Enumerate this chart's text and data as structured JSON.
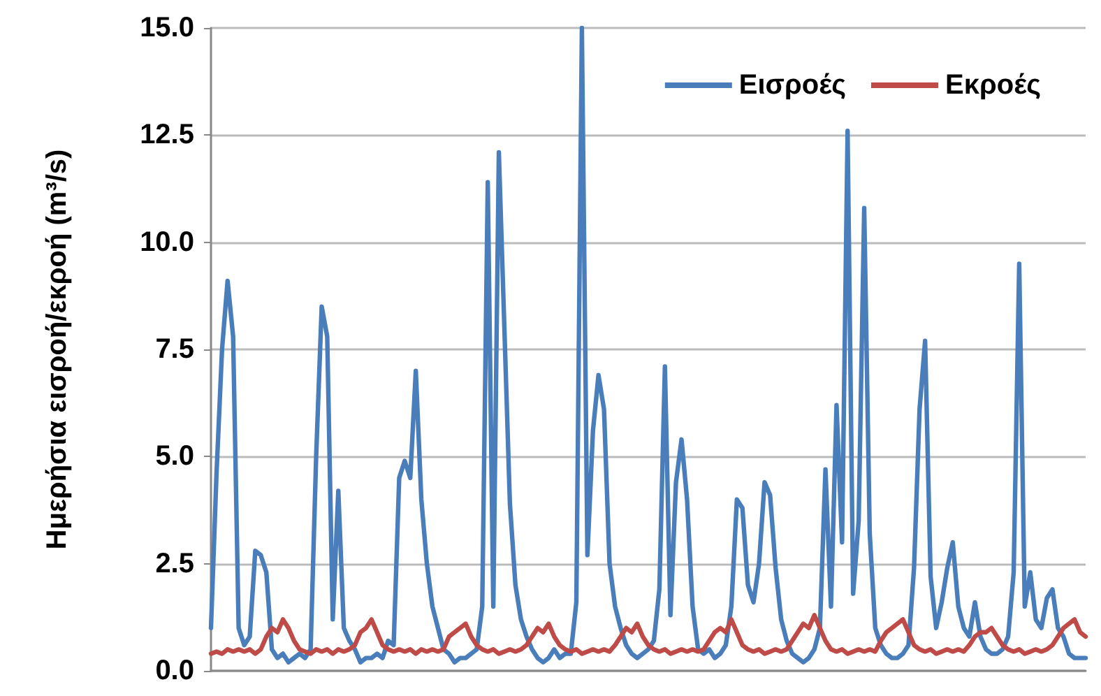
{
  "chart_data": {
    "type": "line",
    "ylabel": "Ημερήσια εισροή/εκροή (m³/s)",
    "categories": [
      null,
      null,
      null,
      null,
      null,
      null,
      null,
      null,
      null,
      null,
      null,
      null,
      null,
      null,
      null,
      null,
      null,
      null,
      null,
      null,
      null,
      null,
      null,
      null,
      null,
      null,
      null,
      null,
      null,
      null,
      null,
      null,
      null,
      null,
      null,
      null,
      null,
      null,
      null,
      null,
      null,
      null,
      null,
      null,
      null,
      null,
      null,
      null,
      null,
      null,
      null,
      null,
      null,
      null,
      null,
      null,
      null,
      null,
      null,
      null,
      null,
      null,
      null,
      null,
      null,
      null,
      null,
      null,
      null,
      null,
      null,
      null,
      null,
      null,
      null,
      null,
      null,
      null,
      null,
      null,
      null,
      null,
      null,
      null,
      null,
      null,
      null,
      null,
      null,
      null,
      null,
      null,
      null,
      null,
      null,
      null,
      null,
      null,
      null,
      null,
      null,
      null,
      null,
      null,
      null,
      null,
      null,
      null,
      null,
      null,
      null,
      null,
      null,
      null,
      null,
      null,
      null,
      null,
      null,
      null,
      null,
      null,
      null,
      null,
      null,
      null,
      null,
      null,
      null,
      null,
      null,
      null,
      null,
      null,
      null,
      null,
      null,
      null,
      null,
      null,
      null,
      null,
      null,
      null,
      null,
      null,
      null,
      null,
      null,
      null,
      null,
      null,
      null,
      null,
      null,
      null,
      null,
      null,
      null
    ],
    "series": [
      {
        "name": "Εισροές",
        "color": "#4a7ebb",
        "values": [
          1.0,
          4.6,
          7.5,
          9.1,
          7.8,
          1.0,
          0.6,
          0.8,
          2.8,
          2.7,
          2.3,
          0.5,
          0.3,
          0.4,
          0.2,
          0.3,
          0.4,
          0.3,
          0.5,
          5.0,
          8.5,
          7.8,
          1.2,
          4.2,
          1.0,
          0.7,
          0.5,
          0.2,
          0.3,
          0.3,
          0.4,
          0.3,
          0.7,
          0.6,
          4.5,
          4.9,
          4.5,
          7.0,
          4.0,
          2.5,
          1.5,
          1.0,
          0.5,
          0.4,
          0.2,
          0.3,
          0.3,
          0.4,
          0.5,
          1.5,
          11.4,
          1.5,
          12.1,
          8.0,
          3.9,
          2.0,
          1.2,
          0.8,
          0.5,
          0.3,
          0.2,
          0.3,
          0.5,
          0.3,
          0.4,
          0.4,
          1.6,
          15.0,
          2.7,
          5.6,
          6.9,
          6.1,
          2.5,
          1.5,
          1.0,
          0.6,
          0.4,
          0.3,
          0.4,
          0.5,
          0.7,
          1.9,
          7.1,
          1.3,
          4.4,
          5.4,
          4.0,
          1.5,
          0.5,
          0.4,
          0.5,
          0.3,
          0.4,
          0.6,
          1.5,
          4.0,
          3.8,
          2.0,
          1.6,
          2.5,
          4.4,
          4.1,
          2.4,
          1.2,
          0.7,
          0.4,
          0.3,
          0.2,
          0.3,
          0.5,
          1.0,
          4.7,
          1.5,
          6.2,
          3.0,
          12.6,
          1.8,
          3.5,
          10.8,
          3.2,
          1.0,
          0.6,
          0.4,
          0.3,
          0.3,
          0.4,
          0.6,
          2.4,
          6.1,
          7.7,
          2.2,
          1.0,
          1.6,
          2.4,
          3.0,
          1.5,
          1.0,
          0.8,
          1.6,
          0.8,
          0.5,
          0.4,
          0.4,
          0.5,
          0.8,
          2.3,
          9.5,
          1.5,
          2.3,
          1.2,
          1.0,
          1.7,
          1.9,
          1.0,
          0.8,
          0.4,
          0.3,
          0.3,
          0.3
        ]
      },
      {
        "name": "Εκροές",
        "color": "#be4b48",
        "values": [
          0.4,
          0.45,
          0.4,
          0.5,
          0.45,
          0.5,
          0.45,
          0.5,
          0.4,
          0.5,
          0.8,
          1.0,
          0.9,
          1.2,
          1.0,
          0.7,
          0.5,
          0.45,
          0.4,
          0.5,
          0.45,
          0.5,
          0.4,
          0.5,
          0.45,
          0.5,
          0.6,
          0.9,
          1.0,
          1.2,
          0.9,
          0.6,
          0.5,
          0.45,
          0.5,
          0.45,
          0.5,
          0.4,
          0.5,
          0.45,
          0.5,
          0.45,
          0.5,
          0.8,
          0.9,
          1.0,
          1.1,
          0.8,
          0.6,
          0.5,
          0.45,
          0.5,
          0.4,
          0.45,
          0.5,
          0.45,
          0.5,
          0.6,
          0.8,
          1.0,
          0.9,
          1.1,
          0.8,
          0.6,
          0.5,
          0.45,
          0.5,
          0.4,
          0.45,
          0.5,
          0.45,
          0.5,
          0.45,
          0.6,
          0.8,
          1.0,
          0.9,
          1.1,
          0.8,
          0.6,
          0.5,
          0.45,
          0.5,
          0.4,
          0.45,
          0.5,
          0.45,
          0.5,
          0.45,
          0.5,
          0.7,
          0.9,
          1.0,
          0.9,
          1.2,
          0.9,
          0.6,
          0.5,
          0.45,
          0.5,
          0.4,
          0.45,
          0.5,
          0.45,
          0.5,
          0.7,
          0.9,
          1.1,
          1.0,
          1.3,
          1.0,
          0.7,
          0.5,
          0.45,
          0.5,
          0.4,
          0.45,
          0.5,
          0.45,
          0.5,
          0.45,
          0.7,
          0.9,
          1.0,
          1.1,
          1.2,
          0.9,
          0.6,
          0.5,
          0.45,
          0.5,
          0.4,
          0.45,
          0.5,
          0.45,
          0.5,
          0.45,
          0.6,
          0.8,
          0.9,
          0.9,
          1.0,
          0.8,
          0.6,
          0.5,
          0.45,
          0.5,
          0.4,
          0.45,
          0.5,
          0.45,
          0.5,
          0.6,
          0.8,
          1.0,
          1.1,
          1.2,
          0.9,
          0.8
        ]
      }
    ],
    "ylim": [
      0,
      15
    ],
    "yticks": [
      {
        "value": 0,
        "label": "0.0"
      },
      {
        "value": 2.5,
        "label": "2.5"
      },
      {
        "value": 5,
        "label": "5.0"
      },
      {
        "value": 7.5,
        "label": "7.5"
      },
      {
        "value": 10,
        "label": "10.0"
      },
      {
        "value": 12.5,
        "label": "12.5"
      },
      {
        "value": 15,
        "label": "15.0"
      }
    ],
    "grid": "y",
    "legend": "top right",
    "marker": "none",
    "line_style": "solid"
  }
}
